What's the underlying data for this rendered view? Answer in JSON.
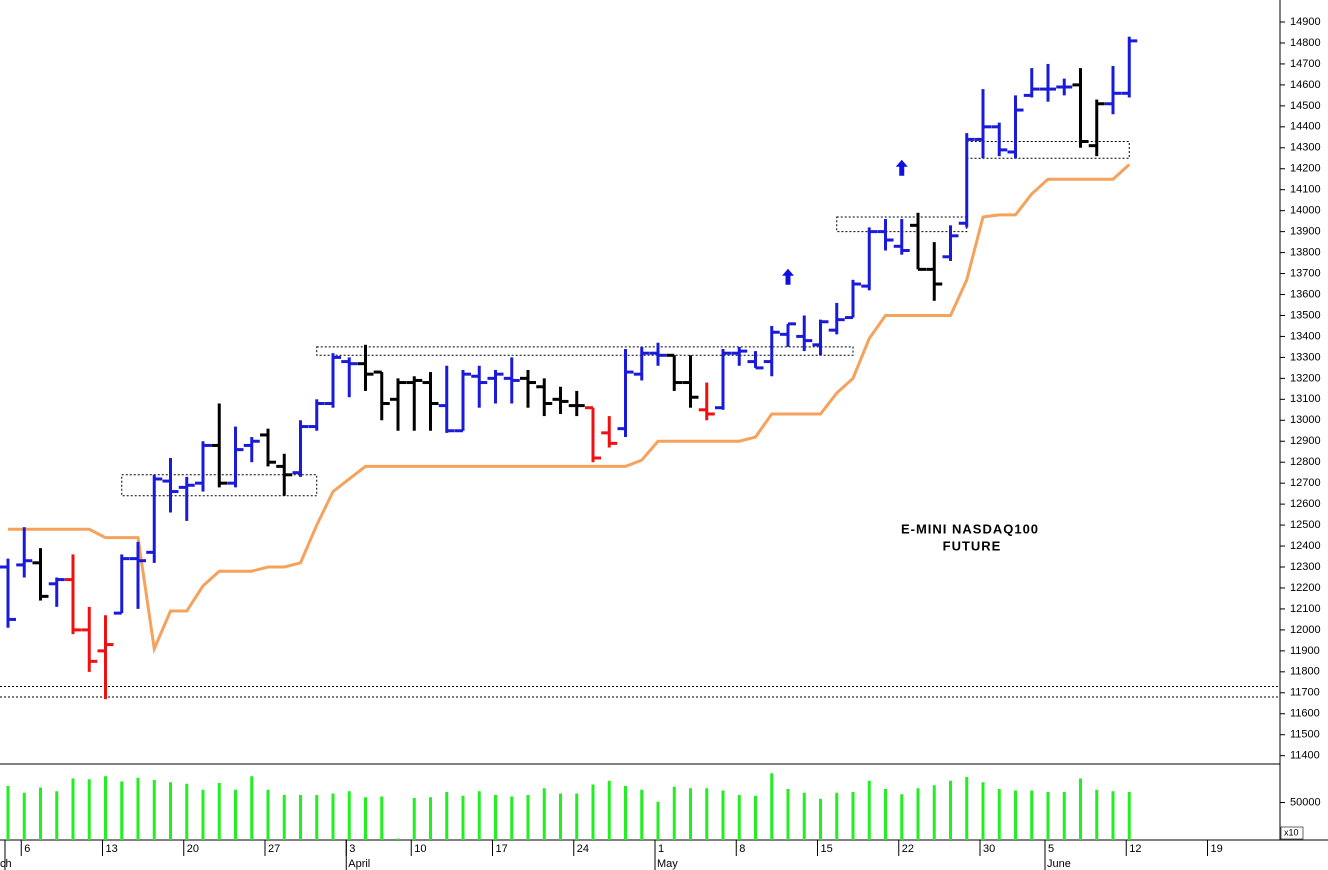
{
  "chart_data": {
    "type": "ohlc",
    "annotation": [
      "E-MINI NASDAQ100",
      "FUTURE"
    ],
    "categories": [
      null,
      "6",
      null,
      null,
      null,
      null,
      "13",
      null,
      null,
      null,
      null,
      "20",
      null,
      null,
      null,
      null,
      "27",
      null,
      null,
      null,
      null,
      "3",
      null,
      null,
      null,
      "10",
      null,
      null,
      null,
      null,
      "17",
      null,
      null,
      null,
      null,
      "24",
      null,
      null,
      null,
      null,
      "1",
      null,
      null,
      null,
      null,
      "8",
      null,
      null,
      null,
      null,
      "15",
      null,
      null,
      null,
      null,
      "22",
      null,
      null,
      null,
      null,
      "30",
      null,
      null,
      null,
      "5",
      null,
      null,
      null,
      null,
      "12",
      null,
      null,
      null,
      null,
      "19"
    ],
    "months": [
      {
        "at": 0,
        "label": "ch"
      },
      {
        "at": 21,
        "label": "April"
      },
      {
        "at": 40,
        "label": "May"
      },
      {
        "at": 64,
        "label": "June"
      }
    ],
    "open": [
      12300,
      12310,
      12320,
      12220,
      12240,
      12000,
      11900,
      12080,
      12340,
      12370,
      12710,
      12680,
      12700,
      12880,
      12700,
      12880,
      12930,
      12780,
      12750,
      12970,
      13080,
      13280,
      13270,
      13230,
      13100,
      13180,
      13180,
      13070,
      12950,
      13210,
      13200,
      13200,
      13200,
      13160,
      13100,
      13070,
      13060,
      12940,
      12960,
      13220,
      13320,
      13310,
      13180,
      13050,
      13060,
      13320,
      13280,
      13280,
      13410,
      13400,
      13360,
      13430,
      13490,
      13640,
      13900,
      13830,
      13930,
      13720,
      13780,
      13940,
      14340,
      14400,
      14280,
      14550,
      14580,
      14590,
      14600,
      14310,
      14510,
      14560,
      null,
      null,
      null,
      null,
      null
    ],
    "high": [
      12340,
      12490,
      12390,
      12250,
      12360,
      12110,
      12070,
      12360,
      12420,
      12740,
      12820,
      12730,
      12900,
      13080,
      12970,
      12920,
      12960,
      12840,
      13000,
      13100,
      13320,
      13300,
      13360,
      13230,
      13200,
      13210,
      13230,
      13260,
      13240,
      13260,
      13240,
      13300,
      13240,
      13200,
      13160,
      13140,
      13060,
      13020,
      13340,
      13350,
      13370,
      13310,
      13310,
      13180,
      13340,
      13350,
      13330,
      13450,
      13460,
      13500,
      13480,
      13560,
      13670,
      13920,
      13960,
      13960,
      13990,
      13850,
      13930,
      14370,
      14580,
      14420,
      14550,
      14680,
      14700,
      14630,
      14680,
      14530,
      14690,
      14830,
      null,
      null,
      null,
      null,
      null
    ],
    "low": [
      12010,
      12250,
      12140,
      12110,
      11980,
      11800,
      11670,
      12080,
      12100,
      12320,
      12560,
      12520,
      12660,
      12680,
      12680,
      12800,
      12780,
      12640,
      12730,
      12950,
      13060,
      13110,
      13140,
      13000,
      12950,
      12950,
      12950,
      12940,
      12950,
      13060,
      13080,
      13080,
      13060,
      13020,
      13030,
      13020,
      12800,
      12870,
      12920,
      13190,
      13260,
      13140,
      13060,
      13000,
      13050,
      13260,
      13250,
      13210,
      13350,
      13330,
      13310,
      13410,
      13490,
      13620,
      13810,
      13790,
      13720,
      13570,
      13760,
      13920,
      14250,
      14260,
      14250,
      14540,
      14520,
      14550,
      14300,
      14260,
      14460,
      14540,
      null,
      null,
      null,
      null,
      null
    ],
    "close": [
      12050,
      12330,
      12160,
      12240,
      12000,
      11850,
      11930,
      12340,
      12330,
      12720,
      12660,
      12690,
      12880,
      12700,
      12860,
      12900,
      12800,
      12740,
      12970,
      13080,
      13300,
      13270,
      13220,
      13080,
      13180,
      13190,
      13080,
      12950,
      13220,
      13180,
      13220,
      13190,
      13180,
      13080,
      13090,
      13070,
      12820,
      12890,
      13230,
      13320,
      13310,
      13180,
      13110,
      13030,
      13320,
      13330,
      13250,
      13420,
      13460,
      13380,
      13470,
      13480,
      13650,
      13900,
      13860,
      13810,
      13720,
      13650,
      13880,
      14340,
      14400,
      14290,
      14480,
      14580,
      14580,
      14590,
      14330,
      14510,
      14560,
      14810,
      null,
      null,
      null,
      null,
      null
    ],
    "colors": [
      "#1a1adb",
      "#1a1adb",
      "#000000",
      "#1a1adb",
      "#ee1111",
      "#ee1111",
      "#ee1111",
      "#1a1adb",
      "#1a1adb",
      "#1a1adb",
      "#1a1adb",
      "#1a1adb",
      "#1a1adb",
      "#000000",
      "#1a1adb",
      "#1a1adb",
      "#000000",
      "#000000",
      "#1a1adb",
      "#1a1adb",
      "#1a1adb",
      "#1a1adb",
      "#000000",
      "#000000",
      "#000000",
      "#000000",
      "#000000",
      "#1a1adb",
      "#1a1adb",
      "#1a1adb",
      "#1a1adb",
      "#1a1adb",
      "#000000",
      "#000000",
      "#000000",
      "#000000",
      "#ee1111",
      "#ee1111",
      "#1a1adb",
      "#1a1adb",
      "#1a1adb",
      "#000000",
      "#000000",
      "#ee1111",
      "#1a1adb",
      "#1a1adb",
      "#1a1adb",
      "#1a1adb",
      "#1a1adb",
      "#1a1adb",
      "#1a1adb",
      "#1a1adb",
      "#1a1adb",
      "#1a1adb",
      "#1a1adb",
      "#1a1adb",
      "#000000",
      "#000000",
      "#1a1adb",
      "#1a1adb",
      "#1a1adb",
      "#1a1adb",
      "#1a1adb",
      "#1a1adb",
      "#1a1adb",
      "#1a1adb",
      "#000000",
      "#000000",
      "#1a1adb",
      "#1a1adb",
      null,
      null,
      null,
      null,
      null
    ],
    "stop": {
      "color": "#f5a25d",
      "values": [
        12480,
        12480,
        12480,
        12480,
        12480,
        12480,
        12440,
        12440,
        12440,
        11910,
        12090,
        12090,
        12210,
        12280,
        12280,
        12280,
        12300,
        12300,
        12320,
        12500,
        12660,
        12720,
        12780,
        12780,
        12780,
        12780,
        12780,
        12780,
        12780,
        12780,
        12780,
        12780,
        12780,
        12780,
        12780,
        12780,
        12780,
        12780,
        12780,
        12810,
        12900,
        12900,
        12900,
        12900,
        12900,
        12900,
        12920,
        13030,
        13030,
        13030,
        13030,
        13130,
        13200,
        13390,
        13500,
        13500,
        13500,
        13500,
        13500,
        13670,
        13970,
        13980,
        13980,
        14080,
        14150,
        14150,
        14150,
        14150,
        14150,
        14220,
        null,
        null,
        null,
        null,
        null
      ]
    },
    "zones": [
      {
        "start": 7,
        "end": 19,
        "high": 12740,
        "low": 12640
      },
      {
        "start": 19,
        "end": 52,
        "high": 13350,
        "low": 13310
      },
      {
        "start": 51,
        "end": 59,
        "high": 13970,
        "low": 13900
      },
      {
        "start": 59,
        "end": 69,
        "high": 14330,
        "low": 14250
      }
    ],
    "levels": [
      11730,
      11680
    ],
    "signals": {
      "color": "#1010e0",
      "points": [
        {
          "bar": 48,
          "value": 13680
        },
        {
          "bar": 55,
          "value": 14200
        }
      ]
    },
    "ylim": [
      11365,
      15005
    ],
    "yticks": [
      11400,
      11500,
      11600,
      11700,
      11800,
      11900,
      12000,
      12100,
      12200,
      12300,
      12400,
      12500,
      12600,
      12700,
      12800,
      12900,
      13000,
      13100,
      13200,
      13300,
      13400,
      13500,
      13600,
      13700,
      13800,
      13900,
      14000,
      14100,
      14200,
      14300,
      14400,
      14500,
      14600,
      14700,
      14800,
      14900
    ],
    "volume": {
      "color": "#22ee22",
      "multiplier": "x10",
      "ylim": [
        0,
        100000
      ],
      "yticks": [
        50000
      ],
      "values": [
        72000,
        63000,
        70000,
        65000,
        82000,
        81000,
        85000,
        78000,
        83000,
        80000,
        77000,
        75000,
        67000,
        76000,
        67000,
        85000,
        67000,
        60000,
        60000,
        60000,
        62000,
        65000,
        57000,
        58000,
        2000,
        56000,
        57000,
        64000,
        59000,
        65000,
        60000,
        58000,
        60000,
        69000,
        62000,
        62000,
        74000,
        79000,
        72000,
        67000,
        51000,
        71000,
        69000,
        69000,
        66000,
        60000,
        59000,
        89000,
        68000,
        63000,
        55000,
        63000,
        64000,
        79000,
        68000,
        61000,
        69000,
        73000,
        79000,
        84000,
        77000,
        68000,
        66000,
        66000,
        64000,
        64000,
        82000,
        67000,
        65000,
        64000,
        null,
        null,
        null,
        null,
        null
      ]
    }
  }
}
